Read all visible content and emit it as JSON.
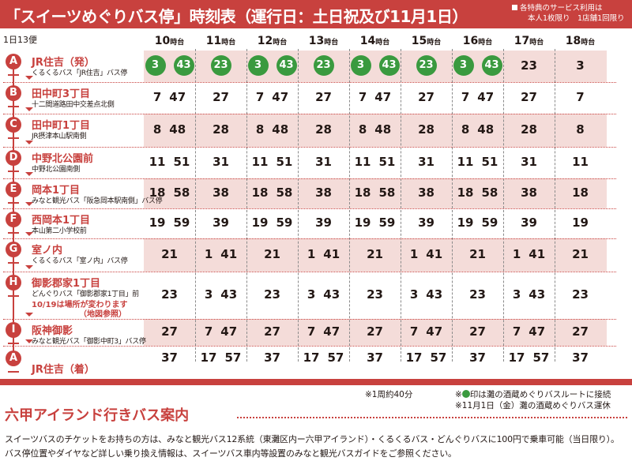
{
  "header": {
    "title": "「スイーツめぐりバス停」時刻表（運行日：土日祝及び11月1日）",
    "notes": [
      "各特典のサービス利用は",
      "本人1枚限り　1店舗1回限り"
    ]
  },
  "trips_label": "1日13便",
  "hours": [
    {
      "num": "10",
      "suffix": "時台"
    },
    {
      "num": "11",
      "suffix": "時台"
    },
    {
      "num": "12",
      "suffix": "時台"
    },
    {
      "num": "13",
      "suffix": "時台"
    },
    {
      "num": "14",
      "suffix": "時台"
    },
    {
      "num": "15",
      "suffix": "時台"
    },
    {
      "num": "16",
      "suffix": "時台"
    },
    {
      "num": "17",
      "suffix": "時台"
    },
    {
      "num": "18",
      "suffix": "時台"
    }
  ],
  "stops": [
    {
      "letter": "A",
      "name": "JR住吉（発）",
      "sub": "くるくるバス「JR住吉」バス停",
      "note": "",
      "note2": ""
    },
    {
      "letter": "B",
      "name": "田中町3丁目",
      "sub": "十二間道路田中交差点北側",
      "note": "",
      "note2": ""
    },
    {
      "letter": "C",
      "name": "田中町1丁目",
      "sub": "JR摂津本山駅南側",
      "note": "",
      "note2": ""
    },
    {
      "letter": "D",
      "name": "中野北公園前",
      "sub": "中野北公園南側",
      "note": "",
      "note2": ""
    },
    {
      "letter": "E",
      "name": "岡本1丁目",
      "sub": "みなと観光バス「阪急岡本駅南側」バス停",
      "note": "",
      "note2": ""
    },
    {
      "letter": "F",
      "name": "西岡本1丁目",
      "sub": "本山第二小学校前",
      "note": "",
      "note2": ""
    },
    {
      "letter": "G",
      "name": "室ノ内",
      "sub": "くるくるバス「室ノ内」バス停",
      "note": "",
      "note2": ""
    },
    {
      "letter": "H",
      "name": "御影郡家1丁目",
      "sub": "どんぐりバス「御影郡家1丁目」前",
      "note": "10/19は場所が変わります",
      "note2": "（地図参照）"
    },
    {
      "letter": "I",
      "name": "阪神御影",
      "sub": "みなと観光バス「御影中町3」バス停",
      "note": "",
      "note2": ""
    },
    {
      "letter": "A",
      "name": "JR住吉（着）",
      "sub": "",
      "note": "",
      "note2": ""
    }
  ],
  "times": [
    [
      [
        "3",
        "43"
      ],
      [
        "23"
      ],
      [
        "3",
        "43"
      ],
      [
        "23"
      ],
      [
        "3",
        "43"
      ],
      [
        "23"
      ],
      [
        "3",
        "43"
      ],
      [
        "23"
      ],
      [
        "3"
      ]
    ],
    [
      [
        "7",
        "47"
      ],
      [
        "27"
      ],
      [
        "7",
        "47"
      ],
      [
        "27"
      ],
      [
        "7",
        "47"
      ],
      [
        "27"
      ],
      [
        "7",
        "47"
      ],
      [
        "27"
      ],
      [
        "7"
      ]
    ],
    [
      [
        "8",
        "48"
      ],
      [
        "28"
      ],
      [
        "8",
        "48"
      ],
      [
        "28"
      ],
      [
        "8",
        "48"
      ],
      [
        "28"
      ],
      [
        "8",
        "48"
      ],
      [
        "28"
      ],
      [
        "8"
      ]
    ],
    [
      [
        "11",
        "51"
      ],
      [
        "31"
      ],
      [
        "11",
        "51"
      ],
      [
        "31"
      ],
      [
        "11",
        "51"
      ],
      [
        "31"
      ],
      [
        "11",
        "51"
      ],
      [
        "31"
      ],
      [
        "11"
      ]
    ],
    [
      [
        "18",
        "58"
      ],
      [
        "38"
      ],
      [
        "18",
        "58"
      ],
      [
        "38"
      ],
      [
        "18",
        "58"
      ],
      [
        "38"
      ],
      [
        "18",
        "58"
      ],
      [
        "38"
      ],
      [
        "18"
      ]
    ],
    [
      [
        "19",
        "59"
      ],
      [
        "39"
      ],
      [
        "19",
        "59"
      ],
      [
        "39"
      ],
      [
        "19",
        "59"
      ],
      [
        "39"
      ],
      [
        "19",
        "59"
      ],
      [
        "39"
      ],
      [
        "19"
      ]
    ],
    [
      [
        "21"
      ],
      [
        "1",
        "41"
      ],
      [
        "21"
      ],
      [
        "1",
        "41"
      ],
      [
        "21"
      ],
      [
        "1",
        "41"
      ],
      [
        "21"
      ],
      [
        "1",
        "41"
      ],
      [
        "21"
      ]
    ],
    [
      [
        "23"
      ],
      [
        "3",
        "43"
      ],
      [
        "23"
      ],
      [
        "3",
        "43"
      ],
      [
        "23"
      ],
      [
        "3",
        "43"
      ],
      [
        "23"
      ],
      [
        "3",
        "43"
      ],
      [
        "23"
      ]
    ],
    [
      [
        "27"
      ],
      [
        "7",
        "47"
      ],
      [
        "27"
      ],
      [
        "7",
        "47"
      ],
      [
        "27"
      ],
      [
        "7",
        "47"
      ],
      [
        "27"
      ],
      [
        "7",
        "47"
      ],
      [
        "27"
      ]
    ],
    [
      [
        "37"
      ],
      [
        "17",
        "57"
      ],
      [
        "37"
      ],
      [
        "17",
        "57"
      ],
      [
        "37"
      ],
      [
        "17",
        "57"
      ],
      [
        "37"
      ],
      [
        "17",
        "57"
      ],
      [
        "37"
      ]
    ]
  ],
  "green_cols": [
    0,
    1,
    2,
    3,
    4,
    5,
    6
  ],
  "colors": {
    "accent": "#c8413e",
    "green": "#3a9a3f",
    "stripe": "#f4dcd9"
  },
  "footer": {
    "cycle": "※1周約40分",
    "green_note_pre": "※",
    "green_note_post": "印は灘の酒蔵めぐりバスルートに接続",
    "closed": "※11月1日（金）灘の酒蔵めぐりバス運休"
  },
  "section": {
    "title": "六甲アイランド行きバス案内",
    "line1": "スイーツバスのチケットをお持ちの方は、みなと観光バス12系統（東灘区内ー六甲アイランド）・くるくるバス・どんぐりバスに100円で乗車可能（当日限り）。",
    "line2": "バス停位置やダイヤなど詳しい乗り換え情報は、スイーツバス車内等設置のみなと観光バスガイドをご参照ください。"
  }
}
